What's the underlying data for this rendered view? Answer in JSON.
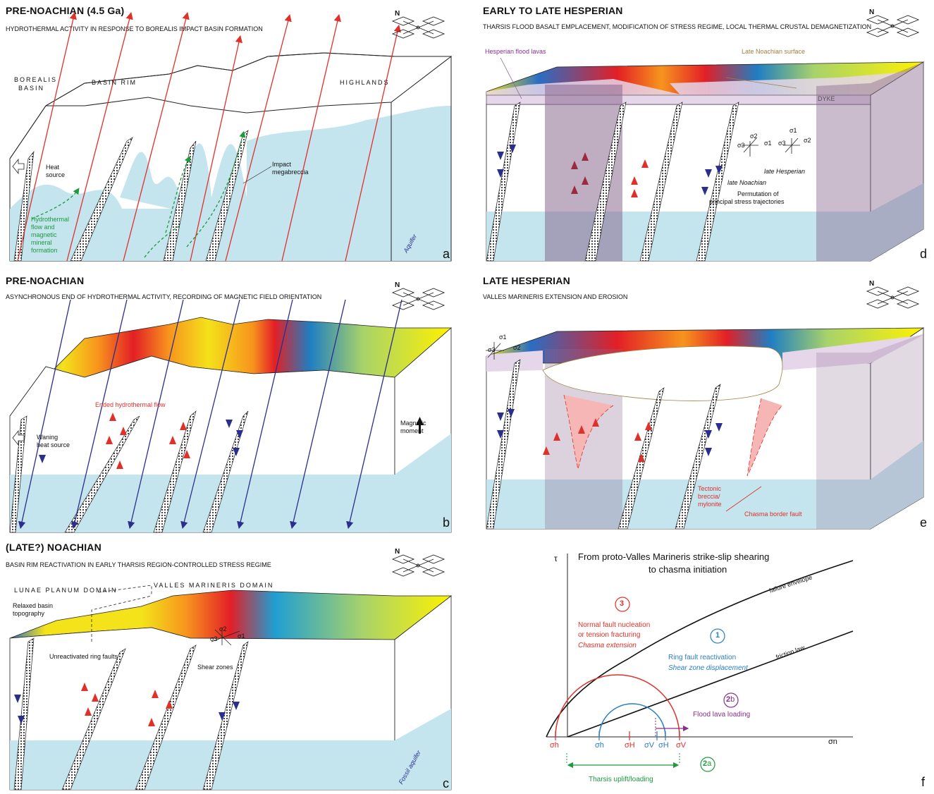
{
  "panels": {
    "a": {
      "title": "PRE-NOACHIAN (4.5 Ga)",
      "subtitle": "HYDROTHERMAL ACTIVITY IN RESPONSE TO BOREALIS IMPACT BASIN FORMATION",
      "label": "a",
      "labels": {
        "borealis": "BOREALIS",
        "basin": "BASIN",
        "basin_rim": "BASIN RIM",
        "highlands": "HIGHLANDS",
        "heat1": "Heat",
        "heat2": "source",
        "mega1": "Impact",
        "mega2": "megabreccia",
        "hydro1": "Hydrothermal",
        "hydro2": "flow and",
        "hydro3": "magnetic",
        "hydro4": "mineral",
        "hydro5": "formation",
        "aquifer": "Aquifer"
      }
    },
    "b": {
      "title": "PRE-NOACHIAN",
      "subtitle": "ASYNCHRONOUS END OF HYDROTHERMAL ACTIVITY, RECORDING OF MAGNETIC FIELD ORIENTATION",
      "label": "b",
      "labels": {
        "ended": "Ended hydrothermal flow",
        "waning1": "Waning",
        "waning2": "heat source",
        "mag1": "Magnetic",
        "mag2": "moment"
      }
    },
    "c": {
      "title": "(LATE?) NOACHIAN",
      "subtitle": "BASIN RIM REACTIVATION IN EARLY THARSIS REGION-CONTROLLED STRESS REGIME",
      "label": "c",
      "labels": {
        "lunae": "LUNAE PLANUM DOMAIN",
        "valles": "VALLES MARINERIS DOMAIN",
        "relaxed1": "Relaxed basin",
        "relaxed2": "topography",
        "unreact": "Unreactivated ring faults",
        "shear": "Shear zones",
        "s1": "σ1",
        "s2": "σ2",
        "s3": "σ3",
        "fossil": "Fossil aquifer"
      }
    },
    "d": {
      "title": "EARLY TO LATE HESPERIAN",
      "subtitle": "THARSIS  FLOOD BASALT EMPLACEMENT, MODIFICATION OF STRESS REGIME, LOCAL THERMAL CRUSTAL DEMAGNETIZATION",
      "label": "d",
      "labels": {
        "hesp_lavas": "Hesperian flood lavas",
        "late_noach_surf": "Late Noachian surface",
        "dyke": "DYKE",
        "s1": "σ1",
        "s2": "σ2",
        "s3": "σ3",
        "late_hesp": "late Hesperian",
        "late_noach": "late Noachian",
        "perm1": "Permutation of",
        "perm2": "principal stress trajectories"
      }
    },
    "e": {
      "title": "LATE HESPERIAN",
      "subtitle": "VALLES MARINERIS EXTENSION AND EROSION",
      "label": "e",
      "labels": {
        "s1": "σ1",
        "s2": "σ2",
        "s3": "σ3",
        "tect1": "Tectonic",
        "tect2": "breccia/",
        "tect3": "mylonite",
        "border": "Chasma border fault"
      }
    },
    "f": {
      "title1": "From proto-Valles Marineris strike-slip shearing",
      "title2": "to chasma initiation",
      "label": "f",
      "tau": "τ",
      "sigma_n": "σn",
      "failure": "failure envelope",
      "friction": "friction law",
      "n3": "3",
      "t3a": "Normal fault nucleation",
      "t3b": "or tension fracturing",
      "t3c": "Chasma extension",
      "n1": "1",
      "t1a": "Ring fault reactivation",
      "t1b": "Shear zone displacement",
      "n2b_num": "2",
      "n2b_let": "b",
      "t2b": "Flood lava loading",
      "n2a_num": "2",
      "n2a_let": "a",
      "t2a": "Tharsis uplift/loading",
      "ax_sh_red": "σh",
      "ax_sh_blue": "σh",
      "ax_sH_red": "σH",
      "ax_sV_blue": "σV",
      "ax_sH_blue": "σH",
      "ax_sV_red": "σV"
    }
  },
  "compass_label": "N",
  "colors": {
    "aquifer": "#c4e4ee",
    "red_arrow": "#e0302a",
    "blue_arrow": "#2a2e8c",
    "green": "#1c9a3c",
    "purple": "#8a2f8a",
    "dyke": "#8a6a90",
    "lava": "#e6d6ea"
  }
}
